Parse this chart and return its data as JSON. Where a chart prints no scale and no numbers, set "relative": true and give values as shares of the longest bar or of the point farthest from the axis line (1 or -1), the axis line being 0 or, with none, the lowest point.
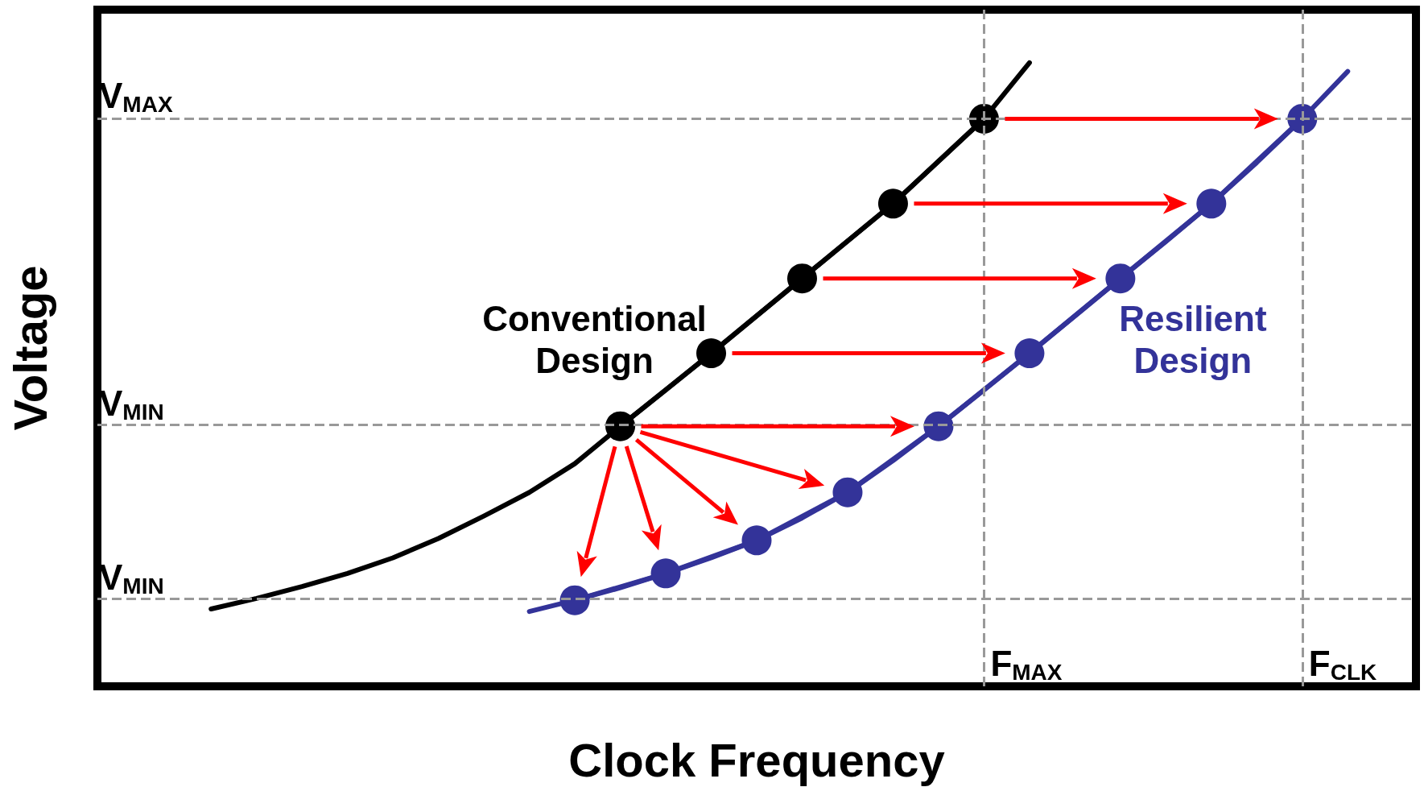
{
  "chart_data": {
    "type": "line",
    "relative": true,
    "xlabel": "Clock Frequency",
    "ylabel": "Voltage",
    "categories": [
      null,
      null,
      null,
      null,
      null,
      null,
      null,
      null,
      null,
      null,
      null,
      null,
      null,
      null,
      null,
      null,
      null,
      null,
      null,
      null,
      null,
      null,
      null,
      null,
      null,
      null,
      null,
      null,
      null
    ],
    "series": [
      {
        "name": "Conventional Design",
        "color": "#000000",
        "marker": "none",
        "values": [
          null,
          null,
          0.124,
          0.141,
          0.16,
          0.181,
          0.206,
          0.237,
          0.273,
          0.311,
          0.357,
          0.417,
          0.475,
          0.534,
          0.594,
          0.654,
          0.714,
          0.774,
          0.842,
          0.91,
          1,
          null,
          null,
          null,
          null,
          null,
          null,
          null,
          null
        ]
      },
      {
        "color": "#000000",
        "values": [
          null,
          null,
          null,
          null,
          null,
          null,
          null,
          null,
          null,
          null,
          null,
          0.417,
          null,
          0.534,
          null,
          0.654,
          null,
          0.774,
          null,
          0.91,
          null,
          null,
          null,
          null,
          null,
          null,
          null,
          null,
          null
        ]
      },
      {
        "name": "Resilient Design",
        "color": "#333399",
        "marker": "none",
        "values": [
          null,
          null,
          null,
          null,
          null,
          null,
          null,
          null,
          null,
          0.12,
          0.138,
          0.158,
          0.181,
          0.206,
          0.234,
          0.27,
          0.311,
          0.362,
          0.417,
          0.475,
          0.534,
          0.594,
          0.654,
          0.713,
          0.774,
          0.84,
          0.91,
          0.986,
          null
        ]
      },
      {
        "color": "#333399",
        "values": [
          null,
          null,
          null,
          null,
          null,
          null,
          null,
          null,
          null,
          null,
          0.138,
          null,
          0.181,
          null,
          0.234,
          null,
          0.311,
          null,
          0.417,
          null,
          0.534,
          null,
          0.654,
          null,
          0.774,
          null,
          0.91,
          null,
          null
        ]
      }
    ],
    "ref_lines": [
      {
        "axis": "y",
        "value": 0.91,
        "label": "V$_{MAX}$",
        "color": "#999999",
        "line_style": "dashed"
      },
      {
        "axis": "y",
        "value": 0.417,
        "label": "V$_{MIN}$",
        "color": "#999999",
        "line_style": "dashed"
      },
      {
        "axis": "y",
        "value": 0.138,
        "label": "V$_{MIN}$",
        "color": "#999999",
        "line_style": "dashed"
      }
    ],
    "annotations": [
      "F$_{MAX}$",
      "F$_{CLK}$"
    ]
  }
}
